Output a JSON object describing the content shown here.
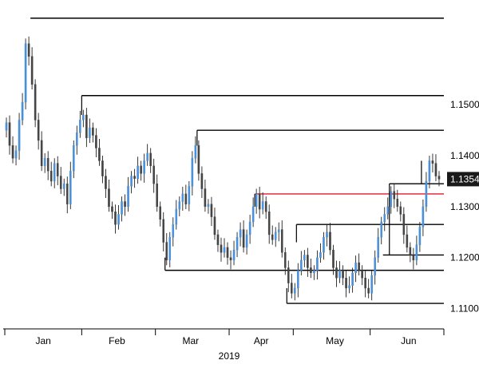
{
  "chart_data": {
    "type": "candlestick",
    "title": "",
    "xlabel": "2019",
    "ylabel": "",
    "ylim": [
      1.106,
      1.169
    ],
    "xlim": [
      0,
      137
    ],
    "month_labels": [
      {
        "label": "Jan",
        "x": 12
      },
      {
        "label": "Feb",
        "x": 35
      },
      {
        "label": "Mar",
        "x": 58
      },
      {
        "label": "Apr",
        "x": 80
      },
      {
        "label": "May",
        "x": 103
      },
      {
        "label": "Jun",
        "x": 126
      }
    ],
    "month_ticks": [
      0,
      24,
      47,
      70,
      90,
      114,
      137
    ],
    "y_ticks": [
      {
        "value": 1.15,
        "label": "1.1500"
      },
      {
        "value": 1.14,
        "label": "1.1400"
      },
      {
        "value": 1.13,
        "label": "1.1300"
      },
      {
        "value": 1.12,
        "label": "1.1200"
      },
      {
        "value": 1.11,
        "label": "1.1100"
      }
    ],
    "last_price": {
      "value": 1.1354,
      "label": "1.1354"
    },
    "horizontal_levels": [
      {
        "y": 1.167,
        "x1": 8,
        "x2": 137,
        "color": "#000000"
      },
      {
        "y": 1.1518,
        "x1": 24,
        "x2": 137,
        "color": "#000000"
      },
      {
        "y": 1.145,
        "x1": 60,
        "x2": 137,
        "color": "#000000"
      },
      {
        "y": 1.1325,
        "x1": 78,
        "x2": 137,
        "color": "#e8182a"
      },
      {
        "y": 1.1265,
        "x1": 91,
        "x2": 137,
        "color": "#000000"
      },
      {
        "y": 1.1345,
        "x1": 120,
        "x2": 137,
        "color": "#000000"
      },
      {
        "y": 1.1205,
        "x1": 118,
        "x2": 137,
        "color": "#000000"
      },
      {
        "y": 1.1175,
        "x1": 50,
        "x2": 137,
        "color": "#000000"
      },
      {
        "y": 1.111,
        "x1": 88,
        "x2": 137,
        "color": "#000000"
      }
    ],
    "vertical_connectors": [
      {
        "x": 24,
        "y1": 1.1518,
        "y2": 1.148
      },
      {
        "x": 60,
        "y1": 1.145,
        "y2": 1.142
      },
      {
        "x": 78,
        "y1": 1.1325,
        "y2": 1.13
      },
      {
        "x": 91,
        "y1": 1.1265,
        "y2": 1.123
      },
      {
        "x": 120,
        "y1": 1.1345,
        "y2": 1.1205
      },
      {
        "x": 130,
        "y1": 1.1345,
        "y2": 1.139
      },
      {
        "x": 50,
        "y1": 1.1175,
        "y2": 1.12
      },
      {
        "x": 88,
        "y1": 1.111,
        "y2": 1.114
      }
    ],
    "series": [
      {
        "name": "",
        "close": [
          1.1465,
          1.142,
          1.1395,
          1.141,
          1.147,
          1.1505,
          1.162,
          1.1595,
          1.154,
          1.147,
          1.143,
          1.138,
          1.1395,
          1.137,
          1.135,
          1.1385,
          1.136,
          1.1335,
          1.1345,
          1.1305,
          1.137,
          1.142,
          1.1445,
          1.147,
          1.148,
          1.1435,
          1.1455,
          1.144,
          1.1415,
          1.139,
          1.136,
          1.1335,
          1.13,
          1.129,
          1.1265,
          1.1285,
          1.131,
          1.13,
          1.134,
          1.136,
          1.1355,
          1.138,
          1.1365,
          1.139,
          1.1405,
          1.138,
          1.1345,
          1.13,
          1.1275,
          1.123,
          1.1195,
          1.124,
          1.1265,
          1.1295,
          1.131,
          1.1325,
          1.1305,
          1.134,
          1.1395,
          1.142,
          1.1365,
          1.1335,
          1.13,
          1.1305,
          1.128,
          1.1245,
          1.1225,
          1.121,
          1.122,
          1.12,
          1.1195,
          1.1215,
          1.124,
          1.1255,
          1.122,
          1.1245,
          1.127,
          1.13,
          1.1325,
          1.1295,
          1.131,
          1.129,
          1.1245,
          1.1235,
          1.125,
          1.1255,
          1.121,
          1.118,
          1.115,
          1.113,
          1.114,
          1.1175,
          1.1195,
          1.1205,
          1.118,
          1.117,
          1.1175,
          1.12,
          1.121,
          1.124,
          1.125,
          1.1215,
          1.118,
          1.116,
          1.1175,
          1.116,
          1.114,
          1.1145,
          1.117,
          1.119,
          1.1175,
          1.116,
          1.114,
          1.113,
          1.1165,
          1.12,
          1.124,
          1.127,
          1.1285,
          1.13,
          1.133,
          1.1315,
          1.13,
          1.1285,
          1.1245,
          1.122,
          1.1205,
          1.1195,
          1.1225,
          1.126,
          1.13,
          1.135,
          1.139,
          1.1385,
          1.136,
          1.1354
        ],
        "color_up": "#4a90d9",
        "color_down": "#444444"
      }
    ],
    "grid": false,
    "legend": "none"
  },
  "colors": {
    "axis": "#000000",
    "price_tag_bg": "#1a1a1a",
    "price_tag_text": "#ffffff"
  }
}
